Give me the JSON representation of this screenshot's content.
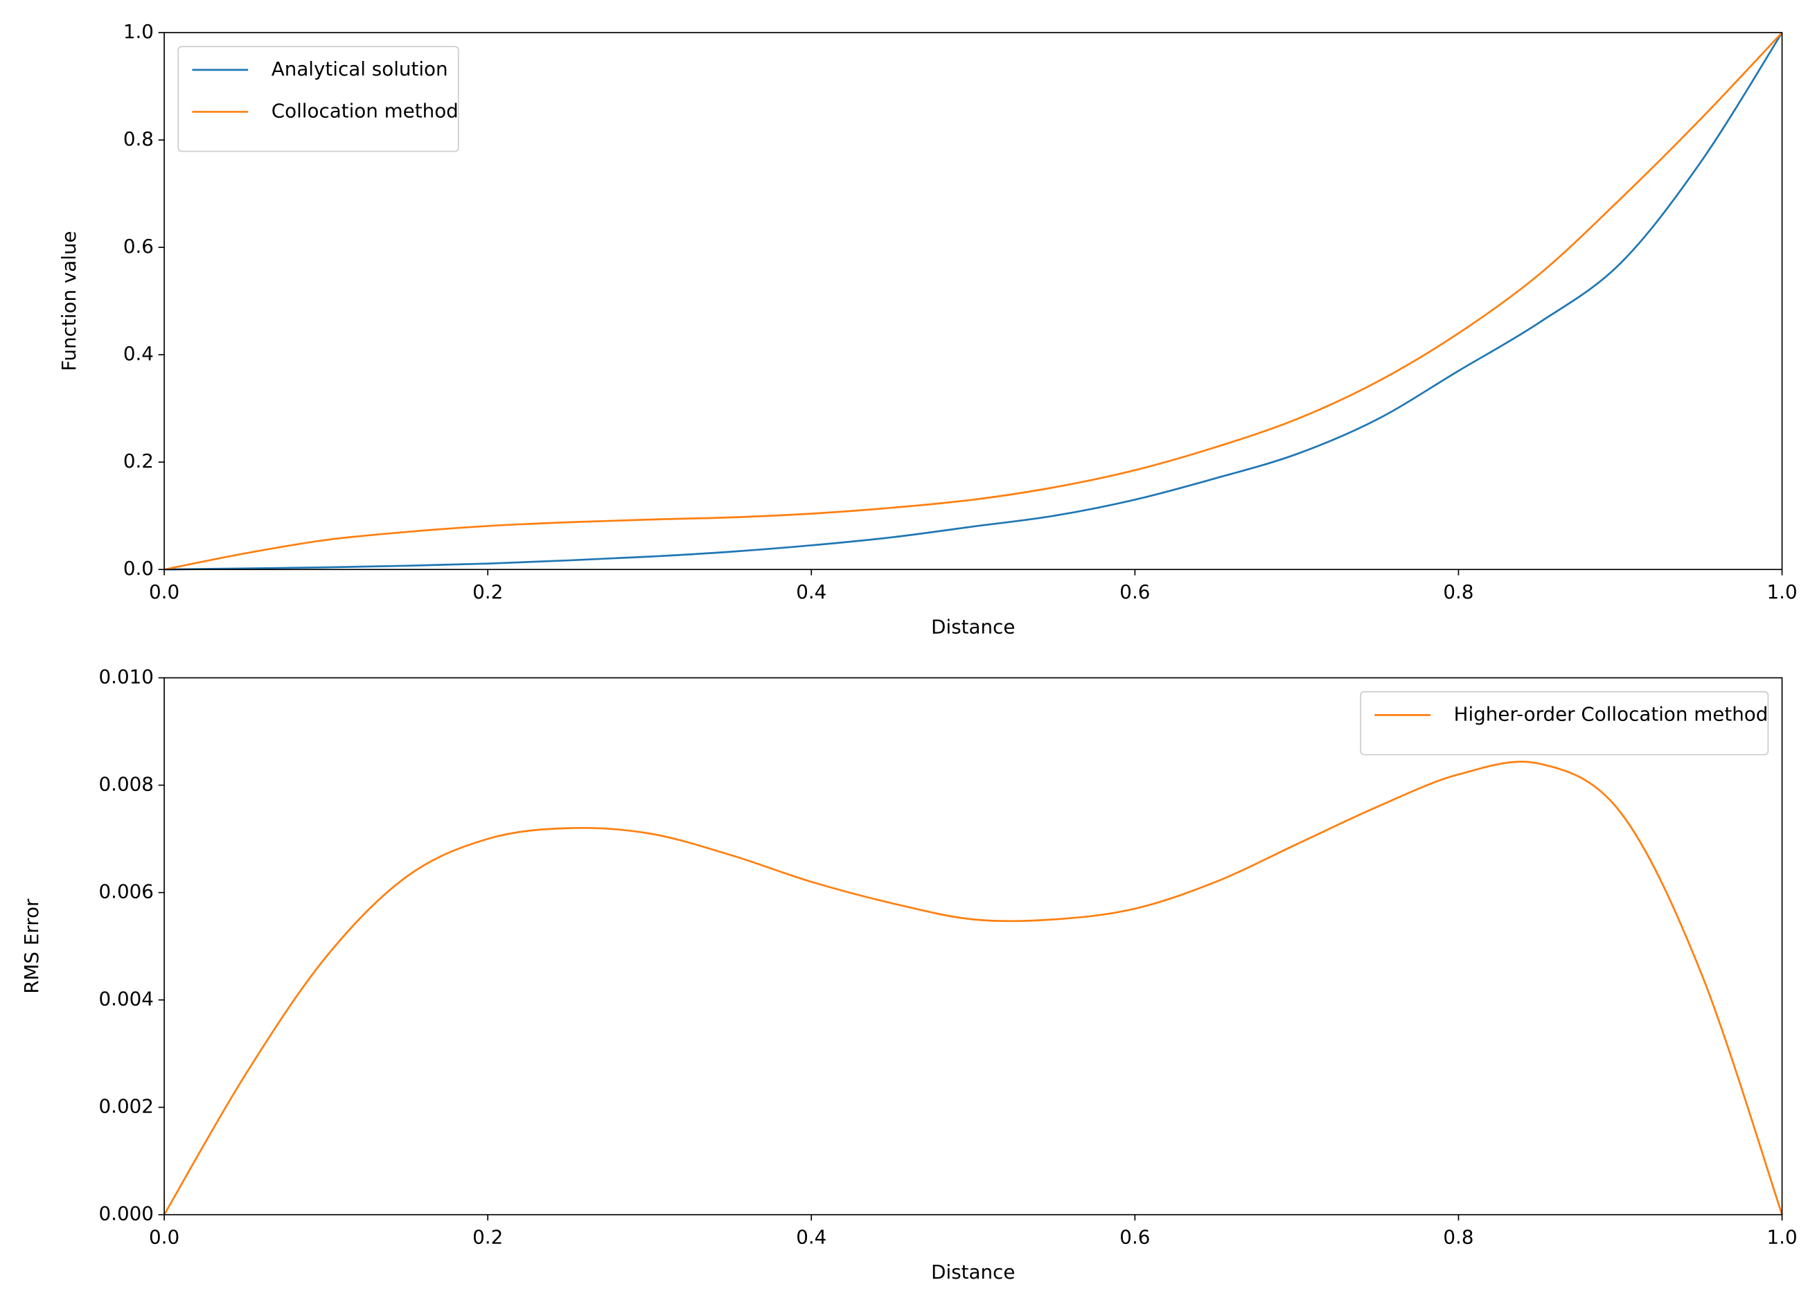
{
  "chart_data": [
    {
      "type": "line",
      "xlabel": "Distance",
      "ylabel": "Function value",
      "x": [
        0,
        0.05,
        0.1,
        0.15,
        0.2,
        0.25,
        0.3,
        0.35,
        0.4,
        0.45,
        0.5,
        0.55,
        0.6,
        0.65,
        0.7,
        0.75,
        0.8,
        0.85,
        0.9,
        0.95,
        1.0
      ],
      "series": [
        {
          "name": "Analytical solution",
          "color": "#1f77b4",
          "values": [
            0,
            0.002,
            0.004,
            0.007,
            0.011,
            0.017,
            0.024,
            0.033,
            0.045,
            0.06,
            0.08,
            0.1,
            0.13,
            0.17,
            0.215,
            0.28,
            0.37,
            0.46,
            0.57,
            0.76,
            1.0
          ]
        },
        {
          "name": "Collocation method",
          "color": "#ff7f0e",
          "values": [
            0,
            0.03,
            0.055,
            0.07,
            0.081,
            0.088,
            0.093,
            0.097,
            0.104,
            0.115,
            0.13,
            0.153,
            0.185,
            0.228,
            0.28,
            0.35,
            0.44,
            0.55,
            0.69,
            0.84,
            1.0
          ]
        }
      ],
      "xlim": [
        0,
        1.0
      ],
      "ylim": [
        0,
        1.0
      ],
      "xticks": [
        {
          "value": 0,
          "label": "0.0"
        },
        0.2,
        0.4,
        0.6,
        0.8,
        {
          "value": 1.0,
          "label": "1.0"
        }
      ],
      "yticks": [
        {
          "value": 0,
          "label": "0.0"
        },
        0.2,
        0.4,
        0.6,
        0.8,
        {
          "value": 1.0,
          "label": "1.0"
        }
      ],
      "legend": "upper left"
    },
    {
      "type": "line",
      "xlabel": "Distance",
      "ylabel": "RMS Error",
      "x": [
        0,
        0.05,
        0.1,
        0.15,
        0.2,
        0.25,
        0.3,
        0.35,
        0.4,
        0.45,
        0.5,
        0.55,
        0.6,
        0.65,
        0.7,
        0.75,
        0.8,
        0.85,
        0.9,
        0.95,
        1.0
      ],
      "series": [
        {
          "name": "Higher-order Collocation method",
          "color": "#ff7f0e",
          "values": [
            0,
            0.0026,
            0.0048,
            0.0063,
            0.007,
            0.0072,
            0.0071,
            0.0067,
            0.0062,
            0.0058,
            0.0055,
            0.0055,
            0.0057,
            0.0062,
            0.0069,
            0.0076,
            0.0082,
            0.0084,
            0.0075,
            0.0045,
            0
          ]
        }
      ],
      "xlim": [
        0,
        1.0
      ],
      "ylim": [
        0,
        0.01
      ],
      "xticks": [
        {
          "value": 0,
          "label": "0.0"
        },
        0.2,
        0.4,
        0.6,
        0.8,
        {
          "value": 1.0,
          "label": "1.0"
        }
      ],
      "yticks": [
        {
          "value": 0,
          "label": "0.000"
        },
        {
          "value": 0.002,
          "label": "0.002"
        },
        {
          "value": 0.004,
          "label": "0.004"
        },
        {
          "value": 0.006,
          "label": "0.006"
        },
        {
          "value": 0.008,
          "label": "0.008"
        },
        {
          "value": 0.01,
          "label": "0.010"
        }
      ],
      "legend": "upper right"
    }
  ]
}
